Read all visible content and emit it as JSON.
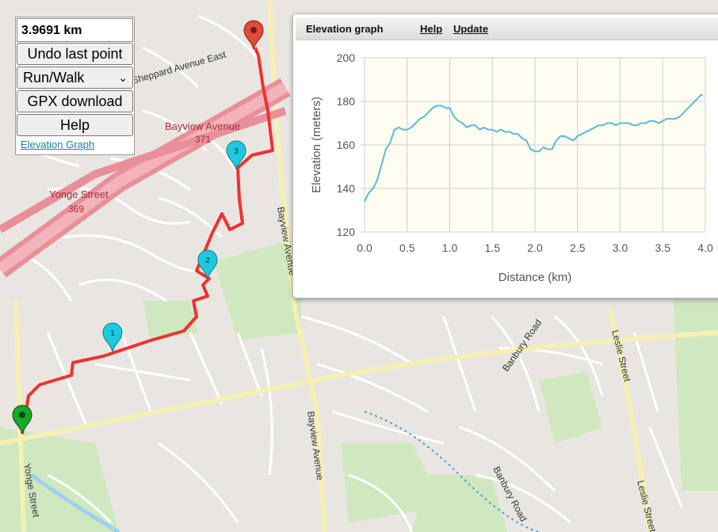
{
  "panel": {
    "distance": "3.9691 km",
    "undo_label": "Undo last point",
    "mode_value": "Run/Walk",
    "gpx_label": "GPX download",
    "help_label": "Help",
    "elevation_link": "Elevation Graph"
  },
  "map": {
    "street_labels": [
      "Sheppard Avenue East",
      "Bayview Avenue",
      "371",
      "Yonge Street",
      "369",
      "Bayview Avenue",
      "Bayview Avenue",
      "Banbury Road",
      "Banbury Road",
      "Leslie Street",
      "Leslie Street",
      "Yonge Street"
    ],
    "markers": [
      "1",
      "2",
      "3"
    ],
    "colors": {
      "route": "#f03030",
      "marker_waypoint": "#1fc8e0",
      "marker_start": "#17a82b",
      "marker_end": "#e04a3a",
      "highway": "#e88f9a"
    }
  },
  "elevation": {
    "title": "Elevation graph",
    "help_label": "Help",
    "update_label": "Update"
  },
  "chart_data": {
    "type": "line",
    "title": "",
    "xlabel": "Distance (km)",
    "ylabel": "Elevation (meters)",
    "xlim": [
      0,
      4
    ],
    "ylim": [
      120,
      200
    ],
    "xticks": [
      "0.0",
      "0.5",
      "1.0",
      "1.5",
      "2.0",
      "2.5",
      "3.0",
      "3.5",
      "4.0"
    ],
    "yticks": [
      "120",
      "140",
      "160",
      "180",
      "200"
    ],
    "grid": true,
    "line_color": "#5bbad5",
    "x": [
      0.0,
      0.05,
      0.1,
      0.15,
      0.2,
      0.25,
      0.3,
      0.35,
      0.4,
      0.45,
      0.5,
      0.55,
      0.6,
      0.65,
      0.7,
      0.75,
      0.8,
      0.85,
      0.9,
      0.95,
      1.0,
      1.05,
      1.1,
      1.15,
      1.2,
      1.25,
      1.3,
      1.35,
      1.4,
      1.45,
      1.5,
      1.55,
      1.6,
      1.65,
      1.7,
      1.75,
      1.8,
      1.85,
      1.9,
      1.95,
      2.0,
      2.05,
      2.1,
      2.15,
      2.2,
      2.25,
      2.3,
      2.35,
      2.4,
      2.45,
      2.5,
      2.55,
      2.6,
      2.65,
      2.7,
      2.75,
      2.8,
      2.85,
      2.9,
      2.95,
      3.0,
      3.05,
      3.1,
      3.15,
      3.2,
      3.25,
      3.3,
      3.35,
      3.4,
      3.45,
      3.5,
      3.55,
      3.6,
      3.65,
      3.7,
      3.75,
      3.8,
      3.85,
      3.9,
      3.95,
      3.97
    ],
    "y": [
      134,
      138,
      140,
      144,
      151,
      158,
      161,
      167,
      168,
      167,
      167,
      168,
      170,
      172,
      173,
      175,
      177,
      178,
      178,
      177,
      177,
      173,
      171,
      170,
      168,
      169,
      169,
      167,
      168,
      167,
      167,
      166,
      167,
      166,
      166,
      165,
      165,
      163,
      162,
      158,
      157,
      157,
      159,
      158,
      158,
      162,
      164,
      164,
      163,
      162,
      164,
      165,
      166,
      167,
      168,
      169,
      169,
      170,
      170,
      169,
      170,
      170,
      170,
      169,
      169,
      170,
      170,
      171,
      171,
      170,
      171,
      172,
      172,
      172,
      173,
      175,
      177,
      179,
      181,
      183,
      183
    ]
  }
}
